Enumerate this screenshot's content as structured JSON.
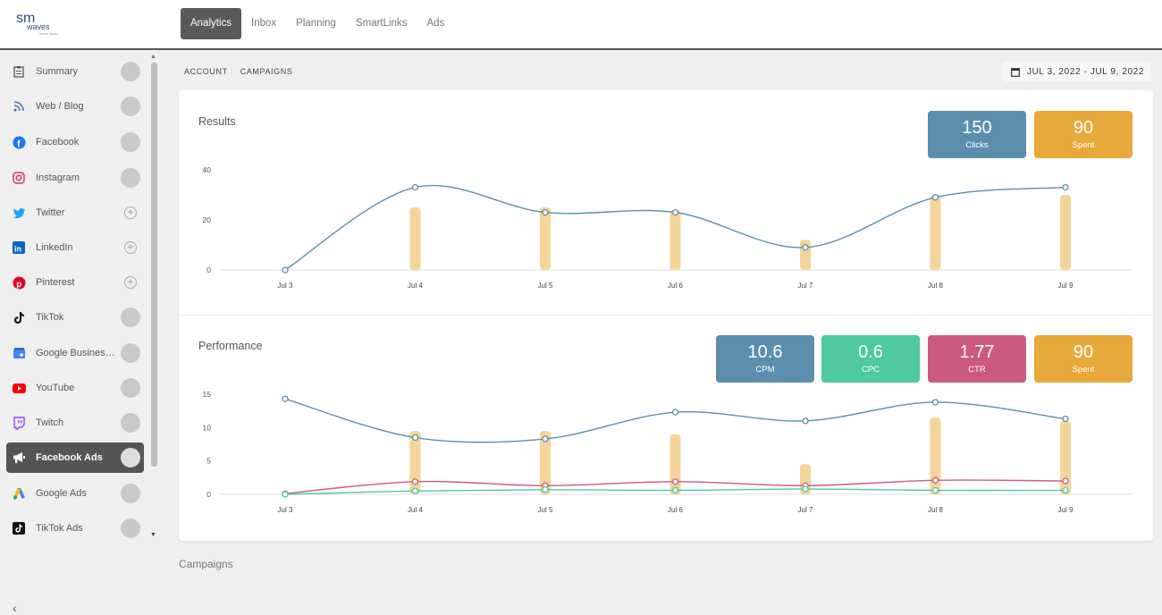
{
  "colors": {
    "blue": "#5b8fad",
    "green": "#4ec9a0",
    "red": "#cc5a80",
    "orange": "#e7a93a",
    "bar": "#f5d49a"
  },
  "logo": {
    "line1": "sm",
    "line2": "waves",
    "line3": "SOCIAL MEDIA"
  },
  "nav": {
    "items": [
      "Analytics",
      "Inbox",
      "Planning",
      "SmartLinks",
      "Ads"
    ],
    "active": "Analytics"
  },
  "sidebar": {
    "items": [
      {
        "label": "Summary",
        "icon": "clipboard-icon",
        "state": "circle"
      },
      {
        "label": "Web / Blog",
        "icon": "rss-icon",
        "state": "circle"
      },
      {
        "label": "Facebook",
        "icon": "facebook-icon",
        "state": "circle"
      },
      {
        "label": "Instagram",
        "icon": "instagram-icon",
        "state": "circle"
      },
      {
        "label": "Twitter",
        "icon": "twitter-icon",
        "state": "plus"
      },
      {
        "label": "LinkedIn",
        "icon": "linkedin-icon",
        "state": "plus"
      },
      {
        "label": "Pinterest",
        "icon": "pinterest-icon",
        "state": "plus"
      },
      {
        "label": "TikTok",
        "icon": "tiktok-icon",
        "state": "circle"
      },
      {
        "label": "Google Business Profile",
        "icon": "google-business-icon",
        "state": "circle"
      },
      {
        "label": "YouTube",
        "icon": "youtube-icon",
        "state": "circle"
      },
      {
        "label": "Twitch",
        "icon": "twitch-icon",
        "state": "circle"
      },
      {
        "label": "Facebook Ads",
        "icon": "megaphone-icon",
        "state": "circle",
        "active": true
      },
      {
        "label": "Google Ads",
        "icon": "google-ads-icon",
        "state": "circle"
      },
      {
        "label": "TikTok Ads",
        "icon": "tiktok-ads-icon",
        "state": "circle"
      }
    ],
    "collapse_icon": "chevron-left-icon"
  },
  "subtabs": [
    "ACCOUNT",
    "CAMPAIGNS"
  ],
  "date_range": "JUL 3, 2022 - JUL 9, 2022",
  "results": {
    "title": "Results",
    "stats": [
      {
        "value": "150",
        "label": "Clicks",
        "color": "#5b8fad"
      },
      {
        "value": "90",
        "label": "Spent",
        "color": "#e7a93a"
      }
    ]
  },
  "performance": {
    "title": "Performance",
    "stats": [
      {
        "value": "10.6",
        "label": "CPM",
        "color": "#5b8fad"
      },
      {
        "value": "0.6",
        "label": "CPC",
        "color": "#4ec9a0"
      },
      {
        "value": "1.77",
        "label": "CTR",
        "color": "#cc5a80"
      },
      {
        "value": "90",
        "label": "Spent",
        "color": "#e7a93a"
      }
    ]
  },
  "next_section_title": "Campaigns",
  "chart_data": [
    {
      "type": "line",
      "title": "Results",
      "categories": [
        "Jul 3",
        "Jul 4",
        "Jul 5",
        "Jul 6",
        "Jul 7",
        "Jul 8",
        "Jul 9"
      ],
      "ylim": [
        0,
        40
      ],
      "yticks": [
        0,
        20,
        40
      ],
      "series": [
        {
          "kind": "line",
          "color": "#5b8fad",
          "values": [
            0,
            33,
            23,
            23,
            9,
            29,
            33
          ]
        },
        {
          "kind": "bar",
          "color": "#f5d49a",
          "values": [
            0,
            25,
            25,
            24,
            12,
            30,
            30
          ]
        }
      ]
    },
    {
      "type": "line",
      "title": "Performance",
      "categories": [
        "Jul 3",
        "Jul 4",
        "Jul 5",
        "Jul 6",
        "Jul 7",
        "Jul 8",
        "Jul 9"
      ],
      "ylim": [
        0,
        15
      ],
      "yticks": [
        0,
        5,
        10,
        15
      ],
      "series": [
        {
          "kind": "line",
          "color": "#5b8fad",
          "values": [
            14.3,
            8.5,
            8.3,
            12.3,
            11.0,
            13.8,
            11.3
          ]
        },
        {
          "kind": "line",
          "color": "#cc5a80",
          "values": [
            0.1,
            1.9,
            1.3,
            1.9,
            1.3,
            2.1,
            2.0
          ]
        },
        {
          "kind": "line",
          "color": "#4ec9a0",
          "values": [
            0.0,
            0.5,
            0.7,
            0.6,
            0.8,
            0.6,
            0.6
          ]
        },
        {
          "kind": "bar",
          "color": "#f5d49a",
          "values": [
            0,
            9.5,
            9.5,
            9.0,
            4.5,
            11.5,
            11.0
          ]
        }
      ]
    }
  ]
}
